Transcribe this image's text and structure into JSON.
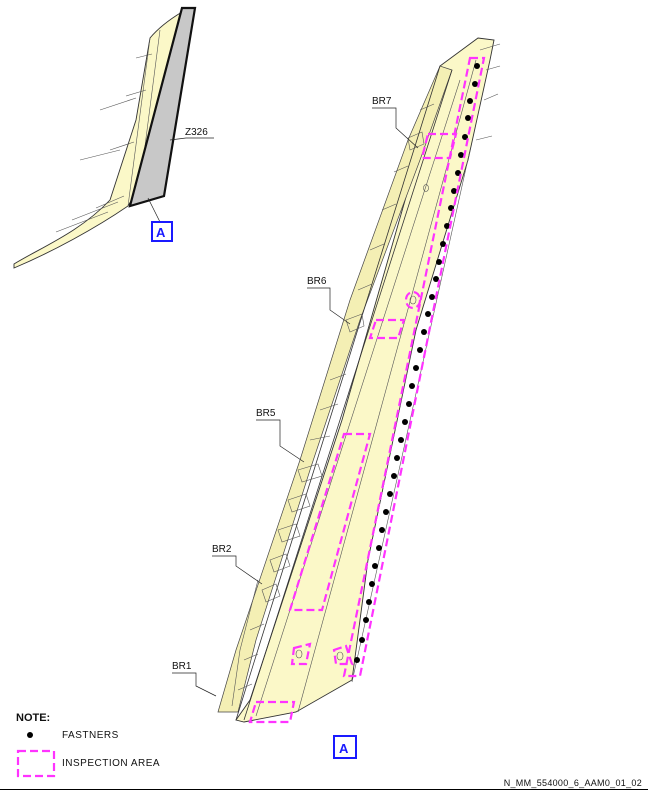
{
  "overview": {
    "zone_label": "Z326",
    "view_ref": "A"
  },
  "detail": {
    "view_label": "A",
    "rib_labels": [
      "BR7",
      "BR6",
      "BR5",
      "BR2",
      "BR1"
    ]
  },
  "note": {
    "title": "NOTE:",
    "legend": [
      {
        "symbol": "fastener-dot",
        "label": "FASTNERS"
      },
      {
        "symbol": "dashed-box",
        "label": "INSPECTION AREA",
        "color": "#ff33ff"
      }
    ]
  },
  "document_ref": "N_MM_554000_6_AAM0_01_02",
  "colors": {
    "skin": "#fbf8c8",
    "inspection": "#ff33ff",
    "view_box": "#1a1aff",
    "shaded_spar": "#c8c8c8"
  }
}
